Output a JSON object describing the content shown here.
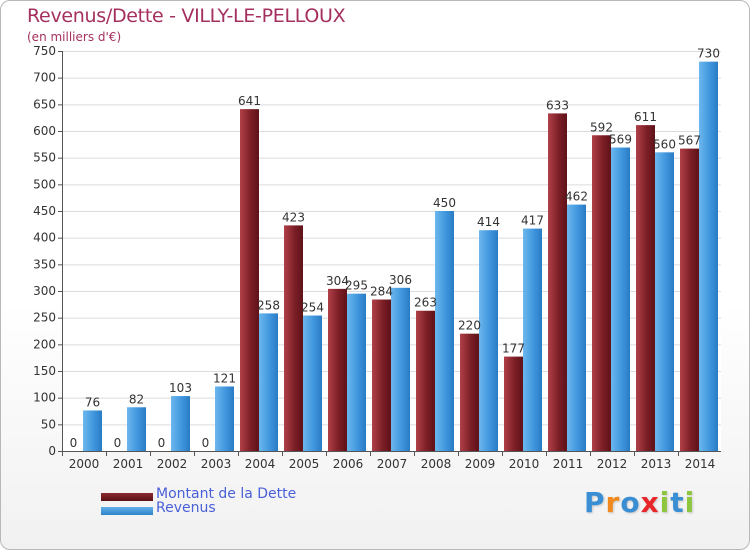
{
  "chart_data": {
    "type": "bar",
    "title": "Revenus/Dette - VILLY-LE-PELLOUX",
    "subtitle": "(en milliers d'€)",
    "xlabel": "",
    "ylabel": "",
    "ylim": [
      0,
      750
    ],
    "yticks": [
      0,
      50,
      100,
      150,
      200,
      250,
      300,
      350,
      400,
      450,
      500,
      550,
      600,
      650,
      700,
      750
    ],
    "grid": "horizontal",
    "legend_position": "bottom-left",
    "categories": [
      "2000",
      "2001",
      "2002",
      "2003",
      "2004",
      "2005",
      "2006",
      "2007",
      "2008",
      "2009",
      "2010",
      "2011",
      "2012",
      "2013",
      "2014"
    ],
    "series": [
      {
        "name": "Montant de la Dette",
        "color": "#7a1c22",
        "values": [
          0,
          0,
          0,
          0,
          641,
          423,
          304,
          284,
          263,
          220,
          177,
          633,
          592,
          611,
          567
        ]
      },
      {
        "name": "Revenus",
        "color": "#3d94dc",
        "values": [
          76,
          82,
          103,
          121,
          258,
          254,
          295,
          306,
          450,
          414,
          417,
          462,
          569,
          560,
          730
        ]
      }
    ]
  },
  "brand": {
    "letters": [
      {
        "char": "P",
        "color": "#3a8fd4"
      },
      {
        "char": "r",
        "color": "#f08a1e"
      },
      {
        "char": "o",
        "color": "#3a8fd4"
      },
      {
        "char": "x",
        "color": "#e8262a"
      },
      {
        "char": "i",
        "color": "#8dc63f"
      },
      {
        "char": "t",
        "color": "#3a8fd4"
      },
      {
        "char": "i",
        "color": "#8dc63f"
      }
    ]
  }
}
